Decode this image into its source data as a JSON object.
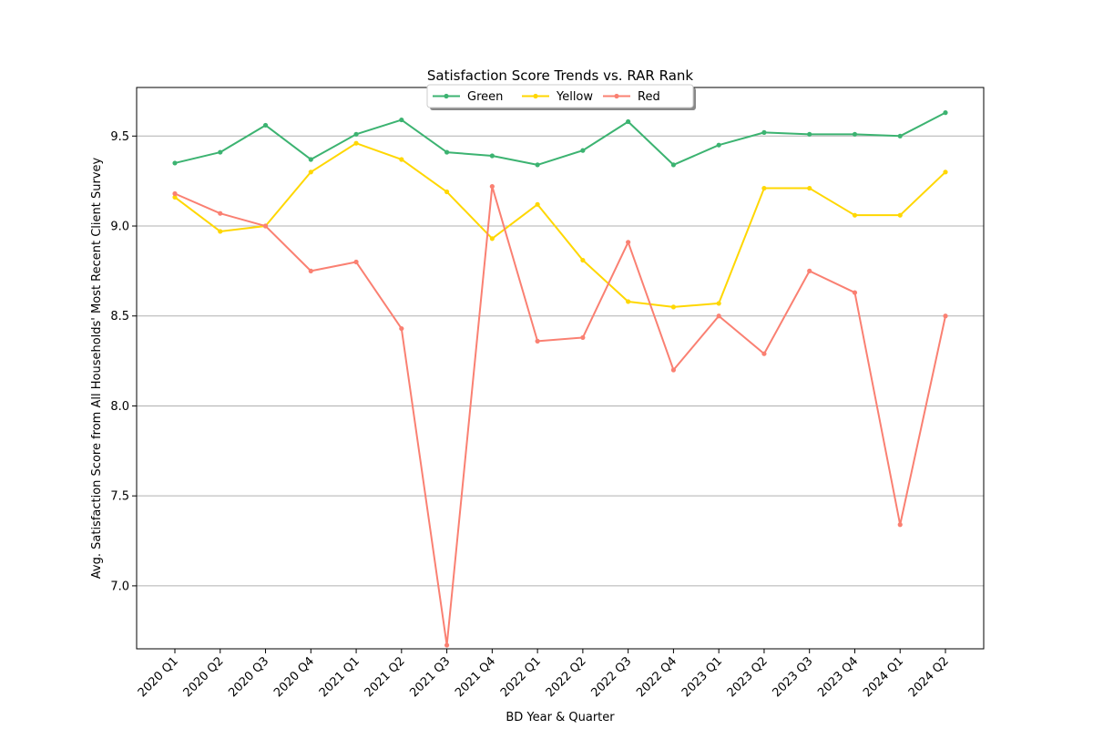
{
  "chart_data": {
    "type": "line",
    "title": "Satisfaction Score Trends vs. RAR Rank",
    "xlabel": "BD Year & Quarter",
    "ylabel": "Avg. Satisfaction Score from All Households' Most Recent Client Survey",
    "categories": [
      "2020 Q1",
      "2020 Q2",
      "2020 Q3",
      "2020 Q4",
      "2021 Q1",
      "2021 Q2",
      "2021 Q3",
      "2021 Q4",
      "2022 Q1",
      "2022 Q2",
      "2022 Q3",
      "2022 Q4",
      "2023 Q1",
      "2023 Q2",
      "2023 Q3",
      "2023 Q4",
      "2024 Q1",
      "2024 Q2"
    ],
    "ylim": [
      6.65,
      9.77
    ],
    "yticks": [
      "7.0",
      "7.5",
      "8.0",
      "8.5",
      "9.0",
      "9.5"
    ],
    "grid": "horizontal",
    "legend_position": "top-center",
    "series": [
      {
        "name": "Green",
        "color": "#3cb371",
        "values": [
          9.35,
          9.41,
          9.56,
          9.37,
          9.51,
          9.59,
          9.41,
          9.39,
          9.34,
          9.42,
          9.58,
          9.34,
          9.45,
          9.52,
          9.51,
          9.51,
          9.5,
          9.63
        ]
      },
      {
        "name": "Yellow",
        "color": "#ffd700",
        "values": [
          9.16,
          8.97,
          9.0,
          9.3,
          9.46,
          9.37,
          9.19,
          8.93,
          9.12,
          8.81,
          8.58,
          8.55,
          8.57,
          9.21,
          9.21,
          9.06,
          9.06,
          9.3
        ]
      },
      {
        "name": "Red",
        "color": "#fa8072",
        "values": [
          9.18,
          9.07,
          9.0,
          8.75,
          8.8,
          8.43,
          6.67,
          9.22,
          8.36,
          8.38,
          8.91,
          8.2,
          8.5,
          8.29,
          8.75,
          8.63,
          7.34,
          8.5
        ]
      }
    ]
  }
}
